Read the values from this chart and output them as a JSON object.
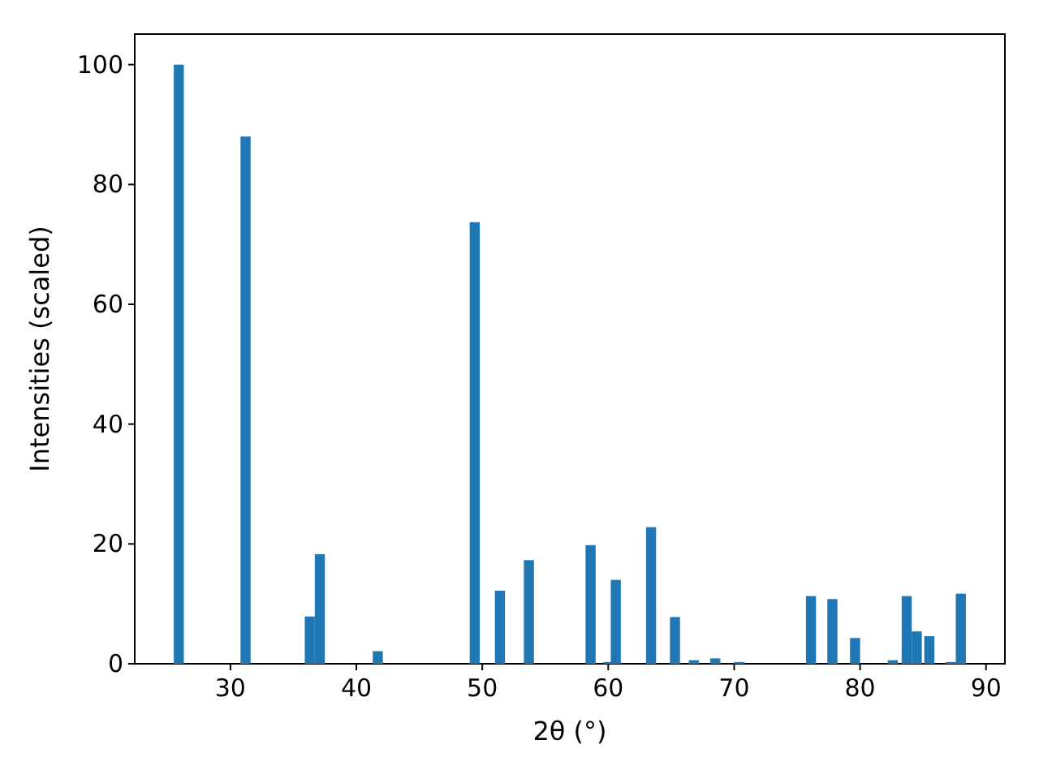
{
  "chart_data": {
    "type": "bar",
    "xlabel": "2θ (°)",
    "ylabel": "Intensities (scaled)",
    "x": [
      25.9,
      31.2,
      36.3,
      37.1,
      41.7,
      49.4,
      51.4,
      53.7,
      58.6,
      60.0,
      60.6,
      63.4,
      65.3,
      66.8,
      68.5,
      70.4,
      76.1,
      77.8,
      79.6,
      82.6,
      83.7,
      84.5,
      85.5,
      87.2,
      88.0
    ],
    "values": [
      100,
      88,
      7.9,
      18.3,
      2.1,
      73.7,
      12.2,
      17.3,
      19.8,
      0.3,
      14.0,
      22.8,
      7.8,
      0.6,
      0.9,
      0.3,
      11.3,
      10.8,
      4.3,
      0.6,
      11.3,
      5.4,
      4.6,
      0.3,
      11.7
    ],
    "color": "#1f77b4",
    "xlim": [
      22.4,
      91.5
    ],
    "xticks": [
      30,
      40,
      50,
      60,
      70,
      80,
      90
    ],
    "ylim": [
      0,
      105.1
    ],
    "yticks": [
      0,
      20,
      40,
      60,
      80,
      100
    ]
  }
}
